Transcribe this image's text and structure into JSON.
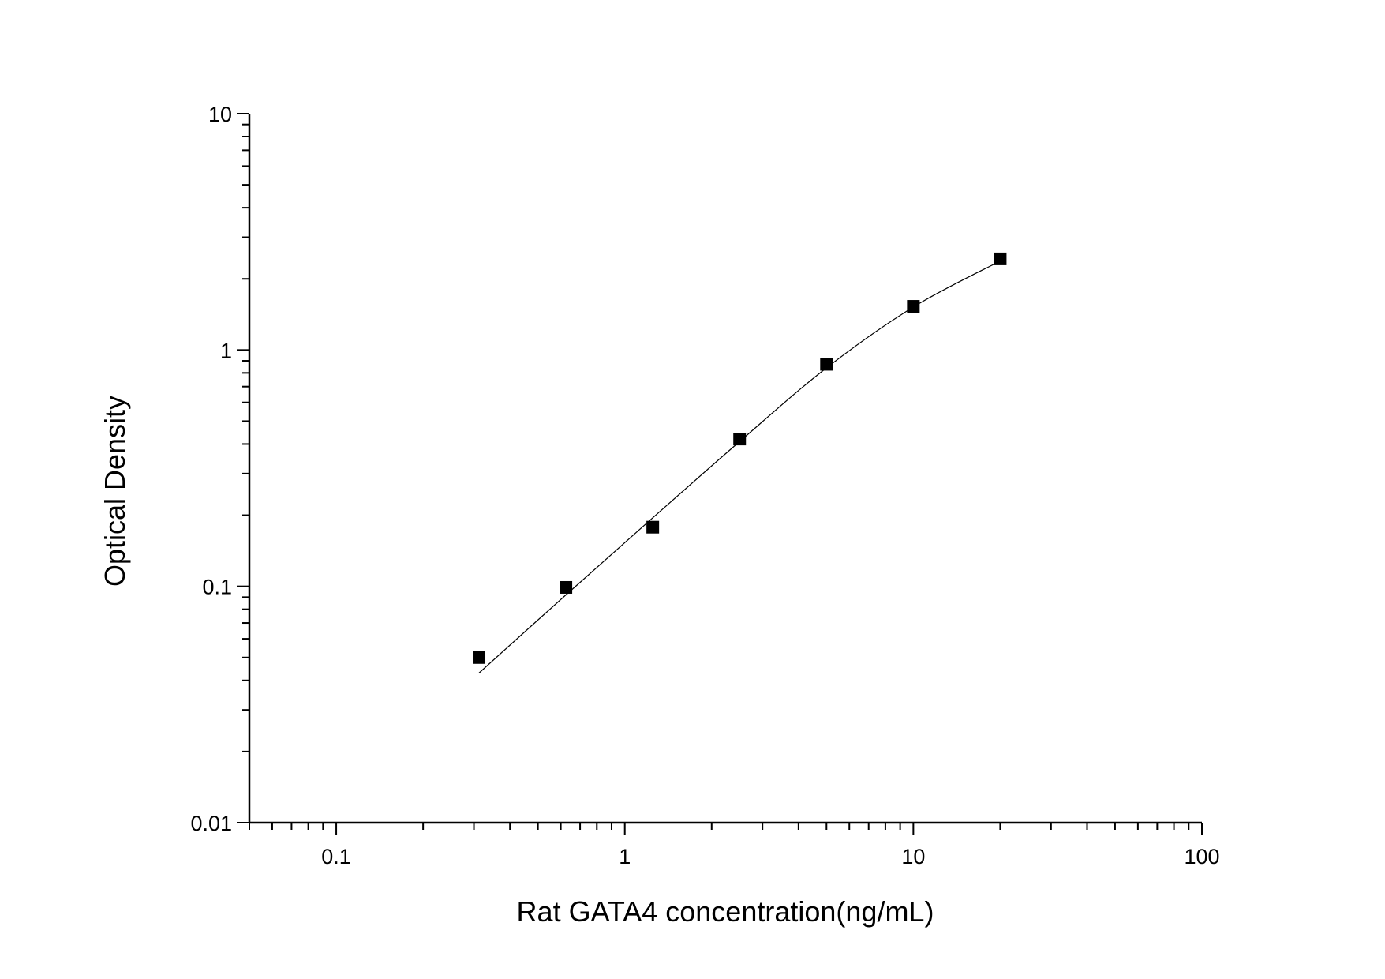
{
  "chart_data": {
    "type": "scatter",
    "title": "",
    "xlabel": "Rat GATA4 concentration(ng/mL)",
    "ylabel": "Optical Density",
    "x_scale": "log",
    "y_scale": "log",
    "xlim": [
      0.05,
      100
    ],
    "ylim": [
      0.01,
      10
    ],
    "x_ticks": [
      0.1,
      1,
      10,
      100
    ],
    "x_tick_labels": [
      "0.1",
      "1",
      "10",
      "100"
    ],
    "y_ticks": [
      0.01,
      0.1,
      1,
      10
    ],
    "y_tick_labels": [
      "0.01",
      "0.1",
      "1",
      "10"
    ],
    "grid": false,
    "legend": "none",
    "marker": "square",
    "marker_color": "#000000",
    "line_color": "#000000",
    "series": [
      {
        "x": [
          0.3125,
          0.625,
          1.25,
          2.5,
          5,
          10,
          20
        ],
        "y": [
          0.05,
          0.099,
          0.178,
          0.42,
          0.87,
          1.53,
          2.43
        ]
      }
    ],
    "fit_curve": {
      "x": [
        0.3125,
        0.625,
        1.25,
        2.5,
        5,
        10,
        20
      ],
      "y": [
        0.043,
        0.092,
        0.195,
        0.41,
        0.84,
        1.52,
        2.38
      ]
    }
  }
}
